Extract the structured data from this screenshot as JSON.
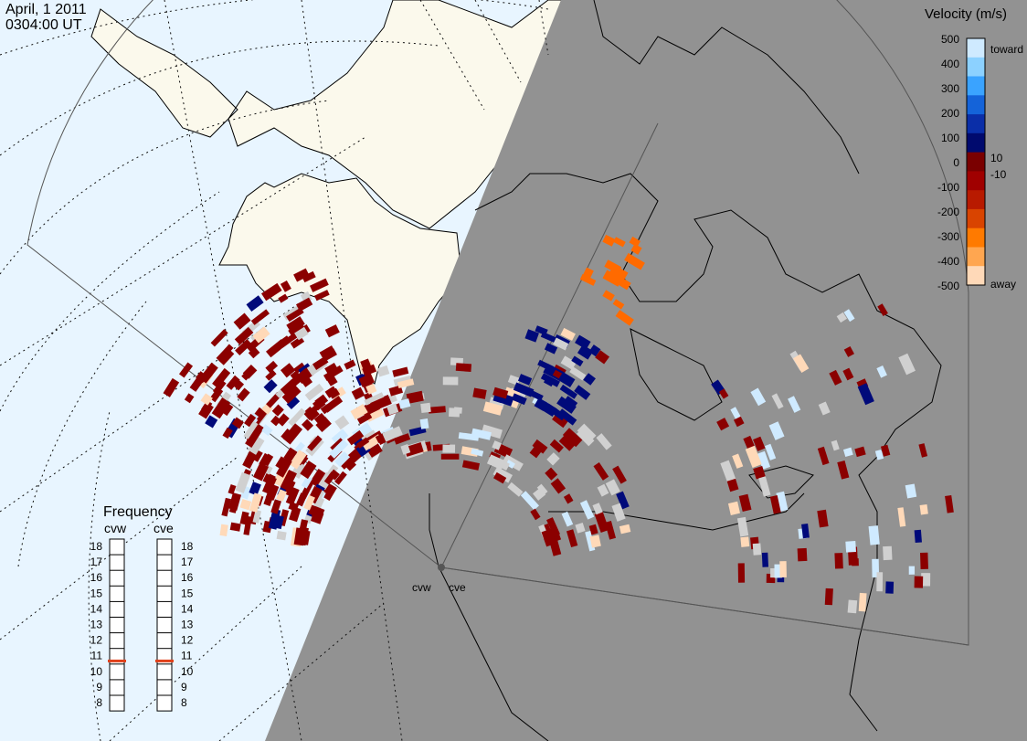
{
  "header": {
    "date": "April, 1 2011",
    "time": "0304:00 UT"
  },
  "colors": {
    "ocean": "#e8f5ff",
    "land": "#fbf9ec",
    "night": "#929292",
    "grid": "#222222",
    "ground_scatter": "#cfcfcf"
  },
  "legend": {
    "title": "Velocity (m/s)",
    "toward_label": "toward",
    "away_label": "away",
    "ticks": [
      "500",
      "400",
      "300",
      "200",
      "100",
      "10",
      "0",
      "-10",
      "-100",
      "-200",
      "-300",
      "-400",
      "-500"
    ],
    "colors": [
      "#cfeaff",
      "#8cd1ff",
      "#3aa3ff",
      "#1463d9",
      "#0a2ea8",
      "#000a6e",
      "#7a0000",
      "#a00000",
      "#b81a00",
      "#d94400",
      "#ff7a00",
      "#ffa650",
      "#ffd9b8"
    ]
  },
  "frequency": {
    "title": "Frequency",
    "radars": [
      {
        "code": "cvw",
        "freq": 10.7
      },
      {
        "code": "cve",
        "freq": 10.7
      }
    ],
    "scale": [
      "18",
      "17",
      "16",
      "15",
      "14",
      "13",
      "12",
      "11",
      "10",
      "9",
      "8"
    ],
    "marker_color": "#e0401a"
  },
  "radar_labels": {
    "west": "cvw",
    "east": "cve"
  }
}
